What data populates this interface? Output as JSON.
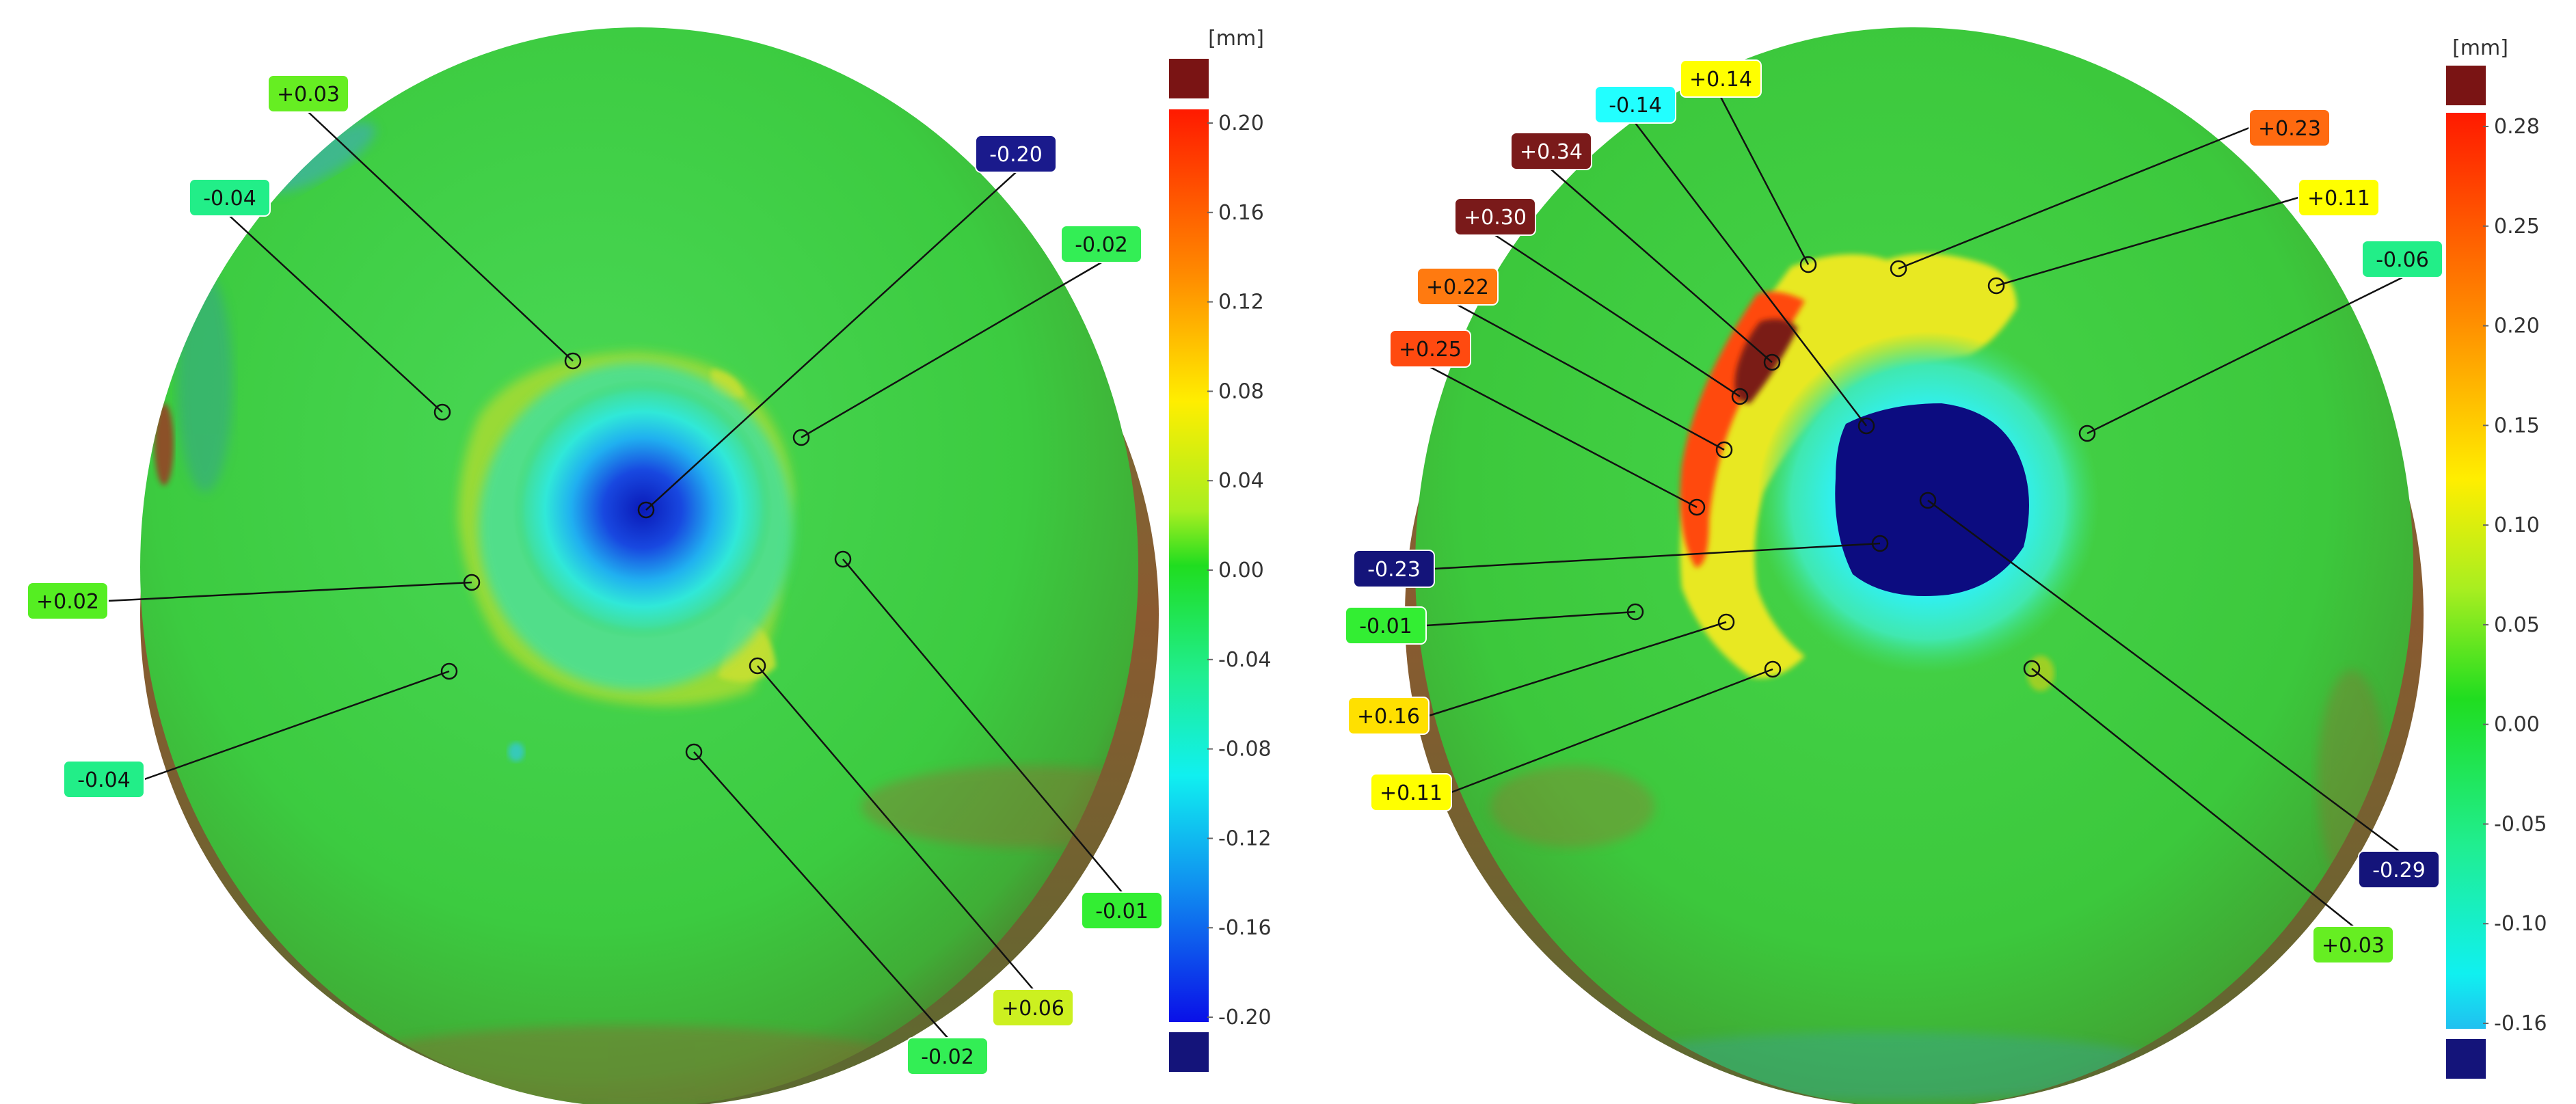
{
  "panels": [
    {
      "id": "left",
      "colorbar": {
        "unit": "[mm]",
        "ticks": [
          "0.20",
          "0.16",
          "0.12",
          "0.08",
          "0.04",
          "0.00",
          "-0.04",
          "-0.08",
          "-0.12",
          "-0.16",
          "-0.20"
        ]
      },
      "callouts": [
        {
          "text": "+0.03",
          "color": "#66ee22",
          "textColor": "#111111"
        },
        {
          "text": "-0.04",
          "color": "#22ee88",
          "textColor": "#111111"
        },
        {
          "text": "-0.20",
          "color": "#1a1a8c",
          "textColor": "#ffffff"
        },
        {
          "text": "-0.02",
          "color": "#33ee55",
          "textColor": "#111111"
        },
        {
          "text": "+0.02",
          "color": "#55ee22",
          "textColor": "#111111"
        },
        {
          "text": "-0.04",
          "color": "#22ee88",
          "textColor": "#111111"
        },
        {
          "text": "-0.01",
          "color": "#33ee33",
          "textColor": "#111111"
        },
        {
          "text": "+0.06",
          "color": "#ccf020",
          "textColor": "#111111"
        },
        {
          "text": "-0.02",
          "color": "#33ee55",
          "textColor": "#111111"
        }
      ]
    },
    {
      "id": "right",
      "colorbar": {
        "unit": "[mm]",
        "ticks": [
          "0.28",
          "0.25",
          "0.20",
          "0.15",
          "0.10",
          "0.05",
          "0.00",
          "-0.05",
          "-0.10",
          "-0.16"
        ]
      },
      "callouts": [
        {
          "text": "+0.14",
          "color": "#ffff00",
          "textColor": "#111111"
        },
        {
          "text": "-0.14",
          "color": "#22ffff",
          "textColor": "#111111"
        },
        {
          "text": "+0.34",
          "color": "#7a1a1a",
          "textColor": "#ffffff"
        },
        {
          "text": "+0.30",
          "color": "#7a1a1a",
          "textColor": "#ffffff"
        },
        {
          "text": "+0.22",
          "color": "#ff7a10",
          "textColor": "#111111"
        },
        {
          "text": "+0.25",
          "color": "#ff4a10",
          "textColor": "#111111"
        },
        {
          "text": "+0.23",
          "color": "#ff6a10",
          "textColor": "#111111"
        },
        {
          "text": "+0.11",
          "color": "#ffff00",
          "textColor": "#111111"
        },
        {
          "text": "-0.06",
          "color": "#22ee88",
          "textColor": "#111111"
        },
        {
          "text": "-0.23",
          "color": "#14147a",
          "textColor": "#ffffff"
        },
        {
          "text": "-0.01",
          "color": "#33ee33",
          "textColor": "#111111"
        },
        {
          "text": "+0.16",
          "color": "#ffe000",
          "textColor": "#111111"
        },
        {
          "text": "+0.11",
          "color": "#ffff00",
          "textColor": "#111111"
        },
        {
          "text": "-0.29",
          "color": "#14147a",
          "textColor": "#ffffff"
        },
        {
          "text": "+0.03",
          "color": "#66ee22",
          "textColor": "#111111"
        }
      ]
    }
  ]
}
